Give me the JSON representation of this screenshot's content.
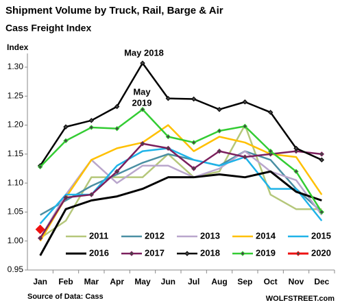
{
  "chart_data": {
    "type": "line",
    "title": "Shipment Volume by Truck, Rail, Barge & Air",
    "subtitle": "Cass Freight Index",
    "y_label": "Index",
    "annotations": [
      {
        "lines": [
          "May 2018"
        ],
        "color": "#000000"
      },
      {
        "lines": [
          "May",
          "2019"
        ],
        "color": "#33cc33"
      }
    ],
    "source": "Source of Data: Cass",
    "watermark": "WOLFSTREET.com",
    "categories": [
      "Jan",
      "Feb",
      "Mar",
      "Apr",
      "May",
      "Jun",
      "Jul",
      "Aug",
      "Sep",
      "Oct",
      "Nov",
      "Dec"
    ],
    "ylim": [
      0.95,
      1.3
    ],
    "yticks": [
      0.95,
      {
        "value": 1.0,
        "label": "1.00"
      },
      1.05,
      {
        "value": 1.1,
        "label": "1.10"
      },
      1.15,
      {
        "value": 1.2,
        "label": "1.20"
      },
      1.25,
      {
        "value": 1.3,
        "label": "1.30"
      }
    ],
    "grid": false,
    "series": [
      {
        "name": "2011",
        "color": "#b5c77a",
        "width": 2.5,
        "values": [
          1.005,
          1.035,
          1.11,
          1.11,
          1.11,
          1.15,
          1.11,
          1.12,
          1.2,
          1.08,
          1.055,
          1.055
        ]
      },
      {
        "name": "2012",
        "color": "#4a8fa3",
        "width": 2.5,
        "values": [
          1.045,
          1.07,
          1.095,
          1.115,
          1.135,
          1.15,
          1.14,
          1.13,
          1.155,
          1.14,
          1.09,
          1.05
        ]
      },
      {
        "name": "2013",
        "color": "#b9a6cc",
        "width": 2.5,
        "values": [
          1.005,
          1.08,
          1.14,
          1.1,
          1.13,
          1.13,
          1.11,
          1.125,
          1.155,
          1.12,
          1.105,
          1.045
        ]
      },
      {
        "name": "2014",
        "color": "#ffc000",
        "width": 2.5,
        "values": [
          1.0,
          1.075,
          1.14,
          1.16,
          1.17,
          1.2,
          1.155,
          1.18,
          1.17,
          1.15,
          1.145,
          1.08
        ]
      },
      {
        "name": "2015",
        "color": "#1fb3e8",
        "width": 2.5,
        "values": [
          1.03,
          1.08,
          1.08,
          1.13,
          1.155,
          1.16,
          1.14,
          1.13,
          1.145,
          1.09,
          1.09,
          1.035
        ]
      },
      {
        "name": "2016",
        "color": "#000000",
        "width": 3,
        "values": [
          0.975,
          1.055,
          1.07,
          1.077,
          1.09,
          1.11,
          1.11,
          1.115,
          1.11,
          1.12,
          1.085,
          1.07
        ]
      },
      {
        "name": "2017",
        "color": "#7b1f5c",
        "width": 2.5,
        "marker": "diamond",
        "values": [
          1.005,
          1.075,
          1.08,
          1.12,
          1.168,
          1.16,
          1.125,
          1.155,
          1.145,
          1.15,
          1.155,
          1.15
        ]
      },
      {
        "name": "2018",
        "color": "#000000",
        "width": 2.5,
        "marker": "diamond",
        "values": [
          1.13,
          1.197,
          1.208,
          1.232,
          1.307,
          1.246,
          1.245,
          1.227,
          1.24,
          1.222,
          1.16,
          1.14
        ]
      },
      {
        "name": "2019",
        "color": "#33cc33",
        "width": 2.5,
        "marker": "diamond",
        "values": [
          1.128,
          1.173,
          1.196,
          1.194,
          1.227,
          1.18,
          1.17,
          1.19,
          1.198,
          1.155,
          1.12,
          1.05
        ]
      },
      {
        "name": "2020",
        "color": "#ee1111",
        "width": 3,
        "marker": "bigdiamond",
        "values": [
          1.02,
          null,
          null,
          null,
          null,
          null,
          null,
          null,
          null,
          null,
          null,
          null
        ]
      }
    ]
  }
}
